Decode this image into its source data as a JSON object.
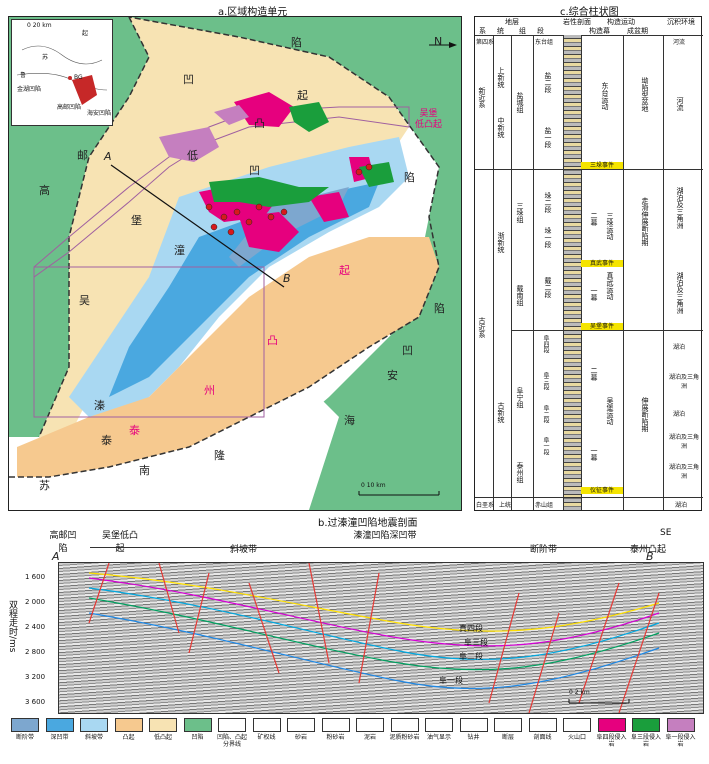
{
  "panel_a": {
    "title": "a.区域构造单元",
    "inset": {
      "scale_label": "0  20 km",
      "labels": [
        "起",
        "苏",
        "鲁",
        "金湖凹陷",
        "高邮凹陷",
        "海安凹陷",
        "陷",
        "隆",
        "南",
        "苏",
        "BG"
      ]
    },
    "north_label": "N",
    "labels": {
      "gaoyou": "高",
      "you": "邮",
      "pu": "堡",
      "wu": "吴",
      "di": "低",
      "qi1": "起",
      "xian1": "陷",
      "ao1": "凹",
      "qi2": "起",
      "tu1": "凸",
      "ao2": "凹",
      "qinliao_label": "溱",
      "tong": "潼",
      "ao3": "凹",
      "xian2": "陷",
      "taizhou_tai": "泰",
      "taizhou_zhou": "州",
      "taizhou_tu": "凸",
      "taizhou_qi": "起",
      "haian_hai": "海",
      "haian_an": "安",
      "haian_ao": "凹",
      "haian_xian": "陷",
      "su": "苏",
      "nan": "南",
      "long": "隆",
      "tai2": "泰",
      "qi3": "起",
      "wubao_low": "吴堡\n低凸起"
    },
    "wells": [
      "A",
      "B"
    ],
    "scale": "0        10 km"
  },
  "panel_b": {
    "title": "b.过溱潼凹陷地震剖面",
    "units": [
      "高邮凹陷",
      "吴堡低凸起",
      "斜坡带",
      "溱潼凹陷深凹带",
      "断阶带",
      "泰州凸起"
    ],
    "end_left": "A",
    "end_right": "B",
    "direction": "SE",
    "yaxis_label": "双程走时/ms",
    "yticks": [
      "1 600",
      "2 000",
      "2 400",
      "2 800",
      "3 200",
      "3 600"
    ],
    "horizons": [
      "真四段",
      "阜三段",
      "阜二段",
      "阜一段"
    ],
    "scale": "0        2 km"
  },
  "panel_c": {
    "title": "c.综合柱状图",
    "headers": [
      "系",
      "统",
      "组",
      "段",
      "岩性剖面",
      "构造运动",
      "沉积环境"
    ],
    "subheaders": [
      "地层",
      "构造幕",
      "成盆期"
    ],
    "rows": [
      {
        "sys": "第四系",
        "series": "",
        "form": "",
        "mem": "东台组",
        "env": "河流"
      },
      {
        "sys": "新近系",
        "series": "上新统",
        "form": "盐城组",
        "mem": "盐二段",
        "env": "河流"
      },
      {
        "sys": "",
        "series": "中新统",
        "form": "",
        "mem": "盐一段",
        "env": ""
      },
      {
        "sys": "古近系",
        "series": "渐新统",
        "form": "三垛组",
        "mem": "垛二段",
        "env": "湖泊及三角洲"
      },
      {
        "sys": "",
        "series": "",
        "form": "",
        "mem": "垛一段",
        "env": ""
      },
      {
        "sys": "",
        "series": "",
        "form": "戴南组",
        "mem": "戴二段",
        "env": "湖泊及三角洲"
      },
      {
        "sys": "",
        "series": "",
        "form": "",
        "mem": "戴一段",
        "env": ""
      },
      {
        "sys": "",
        "series": "古新统",
        "form": "阜宁组",
        "mem": "阜四段",
        "env": "湖泊"
      },
      {
        "sys": "",
        "series": "",
        "form": "",
        "mem": "阜三段",
        "env": "湖泊及三角洲"
      },
      {
        "sys": "",
        "series": "",
        "form": "",
        "mem": "阜二段",
        "env": "湖泊"
      },
      {
        "sys": "",
        "series": "",
        "form": "",
        "mem": "阜一段",
        "env": "湖泊及三角洲"
      },
      {
        "sys": "",
        "series": "",
        "form": "泰州组",
        "mem": "泰二段",
        "env": "湖泊及三角洲"
      },
      {
        "sys": "白垩系",
        "series": "上统",
        "form": "",
        "mem": "赤山组",
        "env": "湖泊"
      }
    ],
    "events": [
      "三垛事件",
      "真武事件",
      "吴堡事件",
      "仪征事件"
    ],
    "tectonic": [
      "东台运动",
      "三垛运动",
      "真武运动",
      "吴堡运动"
    ],
    "episodes": [
      "二幕",
      "一幕",
      "二幕",
      "一幕"
    ],
    "basin_stages": [
      "坳陷型盆地",
      "走滑伸展断陷期",
      "伸展断陷期"
    ]
  },
  "legend": [
    {
      "label": "断阶带",
      "color": "#7da7cf"
    },
    {
      "label": "深凹带",
      "color": "#4aa8e0"
    },
    {
      "label": "斜坡带",
      "color": "#a9d8f2"
    },
    {
      "label": "凸起",
      "color": "#f6c98f"
    },
    {
      "label": "低凸起",
      "color": "#f7e3b3"
    },
    {
      "label": "凹陷",
      "color": "#6cbf8a"
    },
    {
      "label": "凹陷、凸起分界线",
      "color": "#ffffff"
    },
    {
      "label": "矿权线",
      "color": "#ffffff"
    },
    {
      "label": "砂岩",
      "color": "#ffffff"
    },
    {
      "label": "粉砂岩",
      "color": "#ffffff"
    },
    {
      "label": "泥岩",
      "color": "#ffffff"
    },
    {
      "label": "泥质粉砂岩",
      "color": "#ffffff"
    },
    {
      "label": "油气显示",
      "color": "#ffffff"
    },
    {
      "label": "钻井",
      "color": "#ffffff"
    },
    {
      "label": "断层",
      "color": "#ffffff"
    },
    {
      "label": "剖面线",
      "color": "#ffffff"
    },
    {
      "label": "火山口",
      "color": "#ffffff"
    },
    {
      "label": "阜四段侵入岩",
      "color": "#e6007e"
    },
    {
      "label": "阜三段侵入岩",
      "color": "#1a9e3c"
    },
    {
      "label": "阜一段侵入岩",
      "color": "#c57fbf"
    }
  ]
}
